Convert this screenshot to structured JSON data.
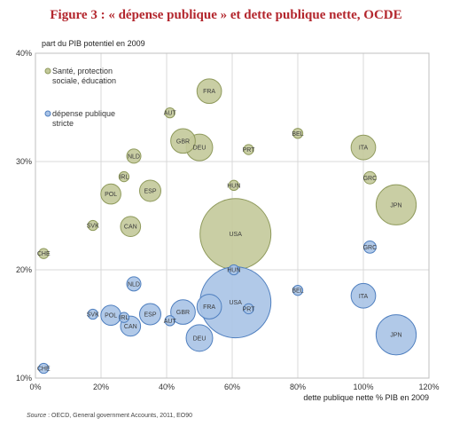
{
  "title": "Figure 3 : « dépense publique » et dette publique nette, OCDE",
  "source_label": "Source",
  "source_text": " : OECD,  General government Accounts, 2011, EO90",
  "colors": {
    "series_green": "#c3c99a",
    "series_green_stroke": "#8f9a5c",
    "series_blue": "#a9c3e6",
    "series_blue_stroke": "#4f7fbf",
    "title": "#b3262d",
    "grid": "#d9d9d9"
  },
  "chart_data": {
    "type": "scatter",
    "ylabel": "part du PIB potentiel en 2009",
    "xlabel": "dette publique nette % PIB en 2009",
    "xlim": [
      0,
      120
    ],
    "ylim": [
      10,
      40
    ],
    "x_ticks": [
      0,
      20,
      40,
      60,
      80,
      100,
      120
    ],
    "x_tick_labels": [
      "0%",
      "20%",
      "40%",
      "60%",
      "80%",
      "100%",
      "120%"
    ],
    "y_ticks": [
      10,
      20,
      30,
      40
    ],
    "y_tick_labels": [
      "10%",
      "20%",
      "30%",
      "40%"
    ],
    "grid": true,
    "legend_position": "top-left",
    "series": [
      {
        "name": "Santé, protection sociale, éducation",
        "legend_lines": [
          "Santé, protection",
          "sociale, éducation"
        ],
        "color_key": "series_green",
        "points": [
          {
            "label": "CHE",
            "x": 2.5,
            "y": 21.5,
            "size": 2
          },
          {
            "label": "SVK",
            "x": 17.5,
            "y": 24.1,
            "size": 2
          },
          {
            "label": "POL",
            "x": 23,
            "y": 27.0,
            "size": 8
          },
          {
            "label": "IRL",
            "x": 27,
            "y": 28.6,
            "size": 2
          },
          {
            "label": "NLD",
            "x": 30,
            "y": 30.5,
            "size": 4
          },
          {
            "label": "CAN",
            "x": 29,
            "y": 24.0,
            "size": 8
          },
          {
            "label": "ESP",
            "x": 35,
            "y": 27.3,
            "size": 9
          },
          {
            "label": "AUT",
            "x": 41,
            "y": 34.5,
            "size": 2
          },
          {
            "label": "GBR",
            "x": 45,
            "y": 31.9,
            "size": 12
          },
          {
            "label": "DEU",
            "x": 50,
            "y": 31.3,
            "size": 14
          },
          {
            "label": "FRA",
            "x": 53,
            "y": 36.5,
            "size": 12
          },
          {
            "label": "HUN",
            "x": 60.5,
            "y": 27.8,
            "size": 2
          },
          {
            "label": "USA",
            "x": 61,
            "y": 23.3,
            "size": 100
          },
          {
            "label": "PRT",
            "x": 65,
            "y": 31.1,
            "size": 2
          },
          {
            "label": "BEL",
            "x": 80,
            "y": 32.6,
            "size": 2
          },
          {
            "label": "ITA",
            "x": 100,
            "y": 31.3,
            "size": 12
          },
          {
            "label": "GRC",
            "x": 102,
            "y": 28.5,
            "size": 3
          },
          {
            "label": "JPN",
            "x": 110,
            "y": 26.0,
            "size": 32
          }
        ]
      },
      {
        "name": "dépense publique stricte",
        "legend_lines": [
          "dépense publique",
          "stricte"
        ],
        "color_key": "series_blue",
        "points": [
          {
            "label": "CHE",
            "x": 2.5,
            "y": 10.9,
            "size": 2
          },
          {
            "label": "SVK",
            "x": 17.5,
            "y": 15.9,
            "size": 2
          },
          {
            "label": "POL",
            "x": 23,
            "y": 15.8,
            "size": 8
          },
          {
            "label": "IRL",
            "x": 27,
            "y": 15.6,
            "size": 2
          },
          {
            "label": "NLD",
            "x": 30,
            "y": 18.7,
            "size": 4
          },
          {
            "label": "CAN",
            "x": 29,
            "y": 14.8,
            "size": 8
          },
          {
            "label": "ESP",
            "x": 35,
            "y": 15.9,
            "size": 9
          },
          {
            "label": "AUT",
            "x": 41,
            "y": 15.3,
            "size": 2
          },
          {
            "label": "GBR",
            "x": 45,
            "y": 16.1,
            "size": 12
          },
          {
            "label": "FRA",
            "x": 53,
            "y": 16.6,
            "size": 12
          },
          {
            "label": "DEU",
            "x": 50,
            "y": 13.7,
            "size": 14
          },
          {
            "label": "HUN",
            "x": 60.5,
            "y": 20.0,
            "size": 2
          },
          {
            "label": "USA",
            "x": 61,
            "y": 17.0,
            "size": 100
          },
          {
            "label": "PRT",
            "x": 65,
            "y": 16.4,
            "size": 2
          },
          {
            "label": "BEL",
            "x": 80,
            "y": 18.1,
            "size": 2
          },
          {
            "label": "ITA",
            "x": 100,
            "y": 17.6,
            "size": 12
          },
          {
            "label": "GRC",
            "x": 102,
            "y": 22.1,
            "size": 3
          },
          {
            "label": "JPN",
            "x": 110,
            "y": 14.0,
            "size": 32
          }
        ]
      }
    ]
  }
}
